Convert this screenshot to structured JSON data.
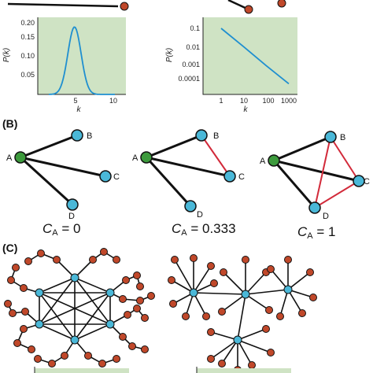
{
  "panel_labels": {
    "b": "(B)",
    "c": "(C)"
  },
  "plots": {
    "left": {
      "ylabel": "P(k)",
      "xlabel": "k",
      "yticks": [
        "0.20",
        "0.15",
        "0.10",
        "0.05"
      ],
      "xticks": [
        "5",
        "10"
      ],
      "curve_color": "#1f8fd0"
    },
    "right": {
      "ylabel": "P(k)",
      "xlabel": "k",
      "yticks": [
        "0.1",
        "0.01",
        "0.001",
        "0.0001"
      ],
      "xticks": [
        "1",
        "10",
        "100",
        "1000"
      ],
      "curve_color": "#1f8fd0"
    },
    "background_color": "#cfe3c4"
  },
  "chart_data": [
    {
      "type": "line",
      "xlabel": "k",
      "ylabel": "P(k)",
      "xlim": [
        0,
        12
      ],
      "ylim": [
        0,
        0.2
      ],
      "x": [
        1,
        2,
        3,
        4,
        5,
        6,
        7,
        8,
        9,
        10
      ],
      "y": [
        0.0,
        0.005,
        0.04,
        0.12,
        0.175,
        0.12,
        0.04,
        0.005,
        0.0,
        0.0
      ]
    },
    {
      "type": "line",
      "xlabel": "k",
      "ylabel": "P(k)",
      "log_x": true,
      "log_y": true,
      "x": [
        1,
        10,
        100,
        1000
      ],
      "y": [
        0.1,
        0.008,
        0.0006,
        5e-05
      ]
    }
  ],
  "clustering": {
    "nodes": [
      "A",
      "B",
      "C",
      "D"
    ],
    "captions": [
      {
        "sym": "C",
        "sub": "A",
        "eq": " = 0"
      },
      {
        "sym": "C",
        "sub": "A",
        "eq": " = 0.333"
      },
      {
        "sym": "C",
        "sub": "A",
        "eq": " = 1"
      }
    ],
    "colors": {
      "center": "#3c9a3c",
      "neighbor": "#4ab8d8",
      "edge": "#111111",
      "triangle": "#d22a3a"
    }
  },
  "networks": {
    "colors": {
      "hub": "#4ab8d8",
      "leaf": "#c0482a",
      "edge": "#111111"
    }
  }
}
